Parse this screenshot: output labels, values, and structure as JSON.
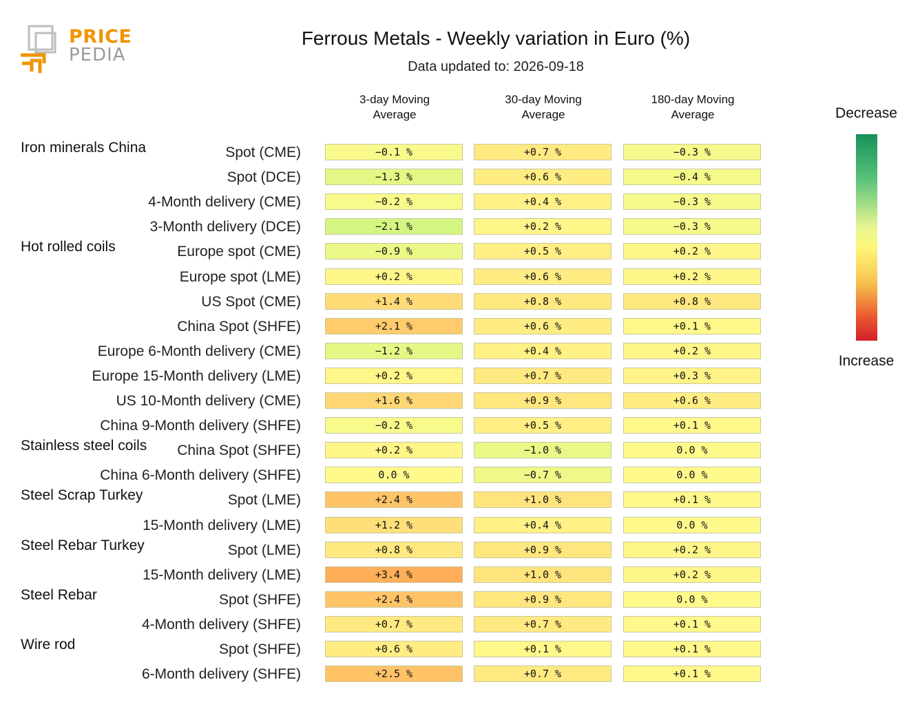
{
  "logo": {
    "line1": "PRICE",
    "line2": "PEDIA"
  },
  "chart_data": {
    "type": "heatmap",
    "title": "Ferrous Metals - Weekly variation in Euro (%)",
    "subtitle": "Data updated to: 2026-09-18",
    "columns": [
      "3-day Moving|Average",
      "30-day Moving|Average",
      "180-day Moving|Average"
    ],
    "legend": {
      "top": "Decrease",
      "bottom": "Increase"
    },
    "groups": [
      {
        "name": "Iron minerals China",
        "rows": [
          {
            "label": "Spot (CME)",
            "values": [
              -0.1,
              0.7,
              -0.3
            ]
          },
          {
            "label": "Spot (DCE)",
            "values": [
              -1.3,
              0.6,
              -0.4
            ]
          },
          {
            "label": "4-Month delivery (CME)",
            "values": [
              -0.2,
              0.4,
              -0.3
            ]
          },
          {
            "label": "3-Month delivery (DCE)",
            "values": [
              -2.1,
              0.2,
              -0.3
            ]
          }
        ]
      },
      {
        "name": "Hot rolled coils",
        "rows": [
          {
            "label": "Europe spot (CME)",
            "values": [
              -0.9,
              0.5,
              0.2
            ]
          },
          {
            "label": "Europe spot (LME)",
            "values": [
              0.2,
              0.6,
              0.2
            ]
          },
          {
            "label": "US Spot (CME)",
            "values": [
              1.4,
              0.8,
              0.8
            ]
          },
          {
            "label": "China Spot (SHFE)",
            "values": [
              2.1,
              0.6,
              0.1
            ]
          },
          {
            "label": "Europe 6-Month delivery (CME)",
            "values": [
              -1.2,
              0.4,
              0.2
            ]
          },
          {
            "label": "Europe 15-Month delivery (LME)",
            "values": [
              0.2,
              0.7,
              0.3
            ]
          },
          {
            "label": "US 10-Month delivery (CME)",
            "values": [
              1.6,
              0.9,
              0.6
            ]
          },
          {
            "label": "China 9-Month delivery (SHFE)",
            "values": [
              -0.2,
              0.5,
              0.1
            ]
          }
        ]
      },
      {
        "name": "Stainless steel coils",
        "rows": [
          {
            "label": "China Spot (SHFE)",
            "values": [
              0.2,
              -1.0,
              0.0
            ]
          },
          {
            "label": "China 6-Month delivery (SHFE)",
            "values": [
              0.0,
              -0.7,
              0.0
            ]
          }
        ]
      },
      {
        "name": "Steel Scrap Turkey",
        "rows": [
          {
            "label": "Spot (LME)",
            "values": [
              2.4,
              1.0,
              0.1
            ]
          },
          {
            "label": "15-Month delivery (LME)",
            "values": [
              1.2,
              0.4,
              0.0
            ]
          }
        ]
      },
      {
        "name": "Steel Rebar Turkey",
        "rows": [
          {
            "label": "Spot (LME)",
            "values": [
              0.8,
              0.9,
              0.2
            ]
          },
          {
            "label": "15-Month delivery (LME)",
            "values": [
              3.4,
              1.0,
              0.2
            ]
          }
        ]
      },
      {
        "name": "Steel Rebar",
        "rows": [
          {
            "label": "Spot (SHFE)",
            "values": [
              2.4,
              0.9,
              0.0
            ]
          },
          {
            "label": "4-Month delivery (SHFE)",
            "values": [
              0.7,
              0.7,
              0.1
            ]
          }
        ]
      },
      {
        "name": "Wire rod",
        "rows": [
          {
            "label": "Spot (SHFE)",
            "values": [
              0.6,
              0.1,
              0.1
            ]
          },
          {
            "label": "6-Month delivery (SHFE)",
            "values": [
              2.5,
              0.7,
              0.1
            ]
          }
        ]
      }
    ]
  }
}
